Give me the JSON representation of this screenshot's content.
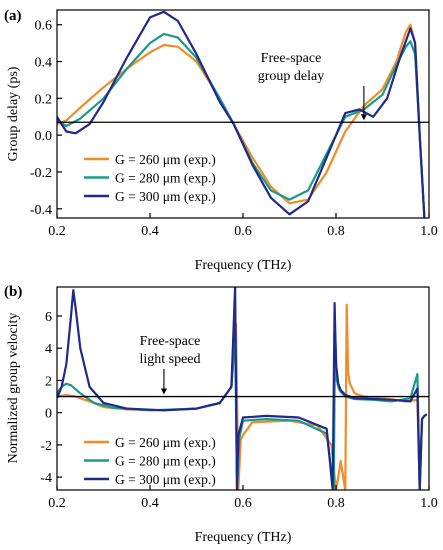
{
  "chart_data": [
    {
      "panel_label": "(a)",
      "type": "line",
      "xlabel": "Frequency (THz)",
      "ylabel": "Group delay (ps)",
      "xlim": [
        0.2,
        1.0
      ],
      "ylim": [
        -0.45,
        0.68
      ],
      "xticks": [
        0.2,
        0.4,
        0.6,
        0.8,
        1.0
      ],
      "xtick_labels": [
        "0.2",
        "0.4",
        "0.6",
        "0.8",
        "1.0"
      ],
      "yticks": [
        -0.4,
        -0.2,
        0.0,
        0.2,
        0.4,
        0.6
      ],
      "ytick_labels": [
        "-0.4",
        "-0.2",
        "0.0",
        "0.2",
        "0.4",
        "0.6"
      ],
      "reference_line": {
        "y": 0.07
      },
      "annotation": {
        "lines": [
          "Free-space",
          "group delay"
        ],
        "arrow_x": 0.86,
        "arrow_y": 0.07
      },
      "legend": "bottom-left",
      "series": [
        {
          "name": "G = 260 μm (exp.)",
          "color": "#f28c28",
          "x": [
            0.2,
            0.22,
            0.25,
            0.3,
            0.35,
            0.4,
            0.43,
            0.46,
            0.5,
            0.55,
            0.58,
            0.62,
            0.66,
            0.7,
            0.74,
            0.78,
            0.82,
            0.86,
            0.9,
            0.93,
            0.95,
            0.96,
            0.97,
            0.98,
            0.99
          ],
          "y": [
            0.06,
            0.08,
            0.15,
            0.26,
            0.36,
            0.45,
            0.49,
            0.48,
            0.4,
            0.2,
            0.06,
            -0.12,
            -0.28,
            -0.37,
            -0.35,
            -0.2,
            0.02,
            0.16,
            0.25,
            0.4,
            0.56,
            0.6,
            0.5,
            0.0,
            -0.45
          ]
        },
        {
          "name": "G = 280 μm (exp.)",
          "color": "#1a9a8a",
          "x": [
            0.2,
            0.22,
            0.25,
            0.3,
            0.35,
            0.4,
            0.43,
            0.46,
            0.5,
            0.55,
            0.58,
            0.62,
            0.66,
            0.7,
            0.74,
            0.78,
            0.82,
            0.86,
            0.9,
            0.93,
            0.95,
            0.96,
            0.97,
            0.98,
            0.99
          ],
          "y": [
            0.08,
            0.05,
            0.09,
            0.2,
            0.36,
            0.5,
            0.55,
            0.53,
            0.42,
            0.2,
            0.06,
            -0.15,
            -0.3,
            -0.35,
            -0.3,
            -0.1,
            0.1,
            0.14,
            0.22,
            0.38,
            0.48,
            0.51,
            0.44,
            0.0,
            -0.45
          ]
        },
        {
          "name": "G = 300 μm (exp.)",
          "color": "#1f2a8a",
          "x": [
            0.2,
            0.22,
            0.24,
            0.27,
            0.3,
            0.35,
            0.4,
            0.43,
            0.46,
            0.5,
            0.55,
            0.58,
            0.62,
            0.66,
            0.7,
            0.74,
            0.78,
            0.82,
            0.85,
            0.88,
            0.91,
            0.94,
            0.96,
            0.97,
            0.98,
            0.99
          ],
          "y": [
            0.1,
            0.02,
            0.01,
            0.06,
            0.18,
            0.42,
            0.64,
            0.67,
            0.62,
            0.44,
            0.18,
            0.06,
            -0.16,
            -0.34,
            -0.43,
            -0.36,
            -0.12,
            0.12,
            0.14,
            0.1,
            0.2,
            0.44,
            0.58,
            0.5,
            0.0,
            -0.45
          ]
        }
      ]
    },
    {
      "panel_label": "(b)",
      "type": "line",
      "xlabel": "Frequency (THz)",
      "ylabel": "Normalized group velocity",
      "xlim": [
        0.2,
        1.0
      ],
      "ylim": [
        -4.8,
        7.8
      ],
      "xticks": [
        0.2,
        0.4,
        0.6,
        0.8,
        1.0
      ],
      "xtick_labels": [
        "0.2",
        "0.4",
        "0.6",
        "0.8",
        "1.0"
      ],
      "yticks": [
        -4,
        -2,
        0,
        2,
        4,
        6
      ],
      "ytick_labels": [
        "-4",
        "-2",
        "0",
        "2",
        "4",
        "6"
      ],
      "reference_line": {
        "y": 1.0
      },
      "annotation": {
        "lines": [
          "Free-space",
          "light speed"
        ],
        "arrow_x": 0.43,
        "arrow_y": 1.0
      },
      "legend": "bottom-left",
      "series": [
        {
          "name": "G = 260 μm (exp.)",
          "color": "#f28c28",
          "x": [
            0.2,
            0.22,
            0.24,
            0.27,
            0.3,
            0.35,
            0.43,
            0.5,
            0.55,
            0.575,
            0.585,
            0.59,
            0.595,
            0.6,
            0.62,
            0.7,
            0.76,
            0.79,
            0.8,
            0.805,
            0.81,
            0.82,
            0.823,
            0.826,
            0.83,
            0.84,
            0.86,
            0.9,
            0.95,
            0.975,
            0.98,
            0.985,
            0.99,
            0.995
          ],
          "y": [
            1.0,
            1.1,
            1.0,
            0.7,
            0.35,
            0.2,
            0.15,
            0.25,
            0.6,
            1.6,
            5.5,
            -4.8,
            -1.7,
            -1.4,
            -0.6,
            -0.5,
            -0.8,
            -2.0,
            -4.8,
            -4.0,
            -3.0,
            -4.8,
            6.7,
            2.5,
            1.8,
            1.2,
            1.0,
            0.9,
            0.7,
            0.8,
            -4.8,
            -0.4,
            -0.2,
            -0.1
          ]
        },
        {
          "name": "G = 280 μm (exp.)",
          "color": "#1a9a8a",
          "x": [
            0.2,
            0.21,
            0.22,
            0.23,
            0.25,
            0.28,
            0.32,
            0.4,
            0.5,
            0.55,
            0.575,
            0.583,
            0.587,
            0.592,
            0.6,
            0.65,
            0.72,
            0.78,
            0.795,
            0.798,
            0.802,
            0.806,
            0.81,
            0.82,
            0.84,
            0.88,
            0.92,
            0.96,
            0.975,
            0.98,
            0.985,
            0.99,
            0.995
          ],
          "y": [
            1.2,
            1.6,
            1.8,
            1.7,
            1.2,
            0.6,
            0.3,
            0.15,
            0.25,
            0.6,
            1.6,
            5.0,
            -4.8,
            -1.6,
            -0.5,
            -0.4,
            -0.5,
            -1.3,
            -4.8,
            5.0,
            2.0,
            1.5,
            1.3,
            1.0,
            0.85,
            0.8,
            0.7,
            0.9,
            2.4,
            -4.8,
            -0.4,
            -0.2,
            -0.1
          ]
        },
        {
          "name": "G = 300 μm (exp.)",
          "color": "#1f2a8a",
          "x": [
            0.2,
            0.21,
            0.22,
            0.23,
            0.235,
            0.24,
            0.25,
            0.27,
            0.3,
            0.35,
            0.43,
            0.5,
            0.55,
            0.575,
            0.583,
            0.587,
            0.59,
            0.6,
            0.65,
            0.72,
            0.78,
            0.793,
            0.797,
            0.8,
            0.805,
            0.81,
            0.82,
            0.84,
            0.88,
            0.92,
            0.96,
            0.975,
            0.98,
            0.985,
            0.99,
            0.995
          ],
          "y": [
            0.9,
            1.6,
            3.0,
            6.0,
            7.6,
            6.5,
            4.0,
            1.6,
            0.6,
            0.25,
            0.15,
            0.25,
            0.6,
            1.6,
            7.8,
            -4.8,
            -1.4,
            -0.3,
            -0.2,
            -0.3,
            -1.0,
            -4.8,
            6.8,
            3.0,
            1.8,
            1.4,
            1.1,
            0.9,
            0.85,
            0.8,
            0.7,
            1.5,
            -4.8,
            -0.4,
            -0.2,
            -0.1
          ]
        }
      ]
    }
  ]
}
